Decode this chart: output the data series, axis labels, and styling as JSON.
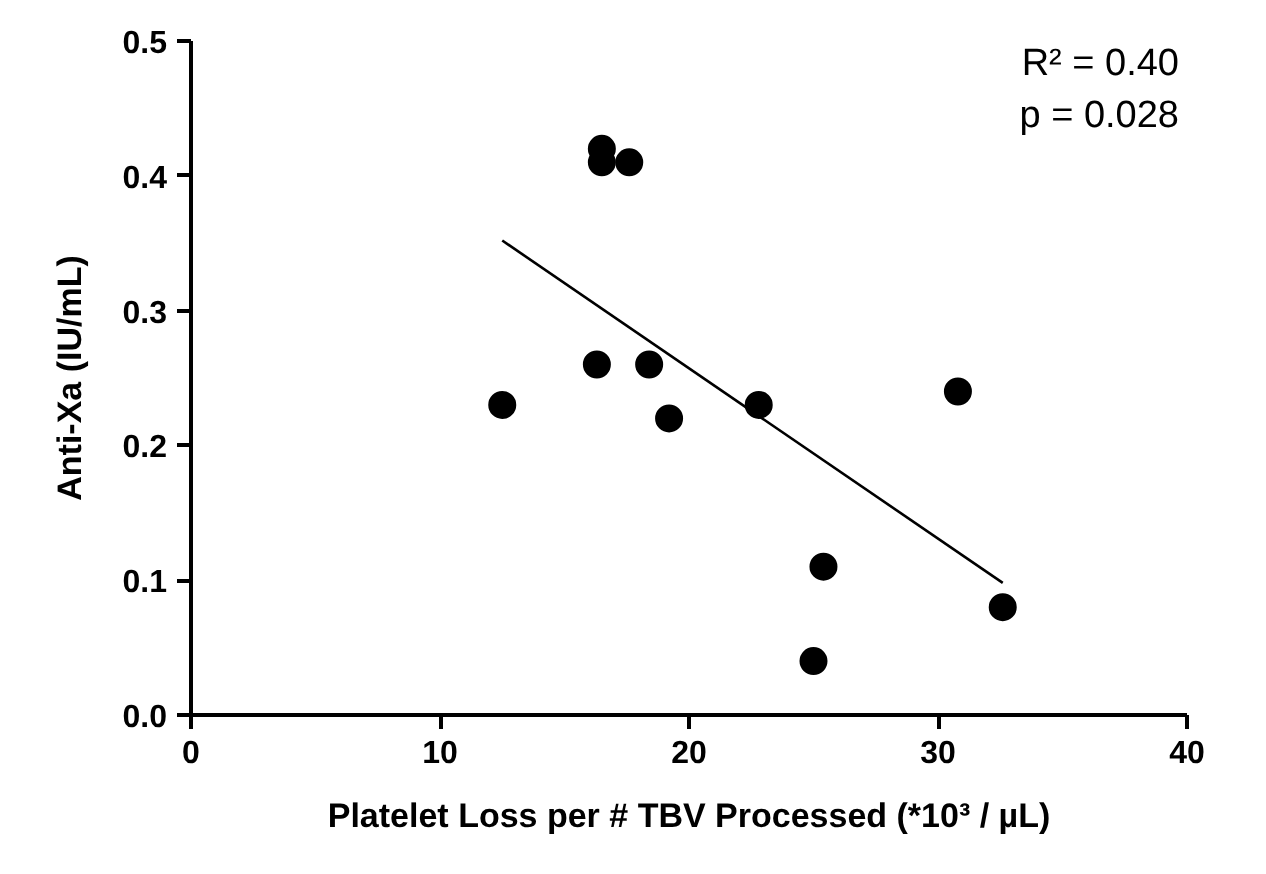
{
  "chart_data": {
    "type": "scatter",
    "xlabel": "Platelet Loss per # TBV Processed (*10³ / µL)",
    "ylabel": "Anti-Xa (IU/mL)",
    "xlim": [
      0,
      40
    ],
    "ylim": [
      0,
      0.5
    ],
    "xticks": [
      0,
      10,
      20,
      30,
      40
    ],
    "yticks": [
      {
        "value": 0,
        "label": "0.0"
      },
      0.1,
      0.2,
      0.3,
      0.4,
      0.5
    ],
    "grid": false,
    "annotations": [
      "R² = 0.40",
      "p = 0.028"
    ],
    "series": [
      {
        "marker": "circle",
        "color": "#000000",
        "x": [
          12.5,
          16.5,
          16.5,
          17.6,
          16.3,
          18.4,
          19.2,
          22.8,
          30.8,
          25.4,
          25.0,
          32.6
        ],
        "values": [
          0.23,
          0.42,
          0.41,
          0.41,
          0.26,
          0.26,
          0.22,
          0.23,
          0.24,
          0.11,
          0.04,
          0.08
        ]
      },
      {
        "type": "line",
        "color": "#000000",
        "line_style": "solid",
        "x": [
          12.5,
          32.6
        ],
        "values": [
          0.352,
          0.098
        ]
      }
    ]
  }
}
